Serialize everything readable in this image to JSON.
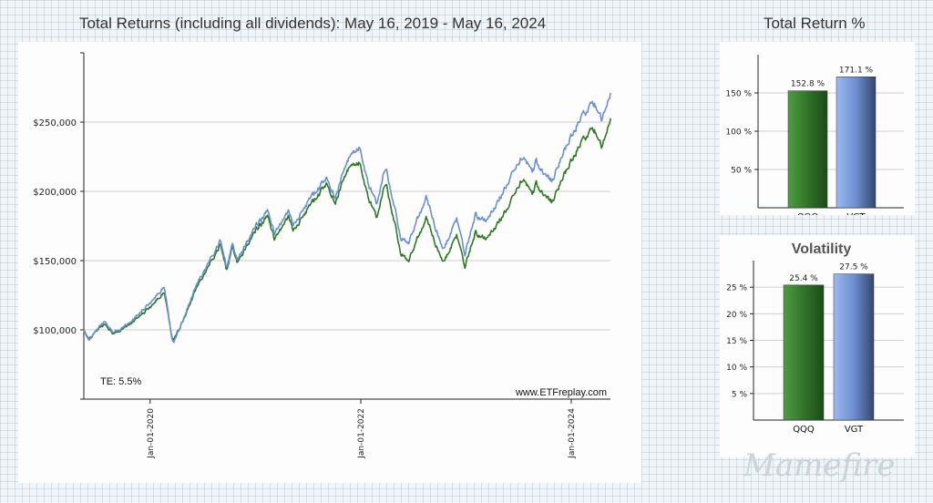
{
  "main_title": "Total Returns (including all dividends): May 16, 2019 - May 16, 2024",
  "side_title": "Total Return %",
  "watermark": "Mamefire",
  "colors": {
    "qqq_line": "#2d7a22",
    "vgt_line": "#6a8fd8",
    "qqq_bar": "#3d8a34",
    "vgt_bar": "#8aa8e6",
    "grid": "#d0d0d0"
  },
  "chart_data": [
    {
      "type": "line",
      "title": "Total Returns (including all dividends): May 16, 2019 - May 16, 2024",
      "y_tick_labels": [
        "$100,000",
        "$150,000",
        "$200,000",
        "$250,000"
      ],
      "x_tick_labels": [
        "Jan-01-2020",
        "Jan-01-2022",
        "Jan-01-2024"
      ],
      "ylim": [
        50000,
        300000
      ],
      "x_range": [
        "2019-05-16",
        "2024-05-16"
      ],
      "grid": true,
      "annotation": "TE:  5.5%",
      "source": "www.ETFreplay.com",
      "series": [
        {
          "name": "QQQ",
          "points": [
            [
              "2019-05-16",
              100000
            ],
            [
              "2019-06-03",
              94000
            ],
            [
              "2019-07-26",
              104000
            ],
            [
              "2019-08-26",
              97000
            ],
            [
              "2019-10-15",
              103000
            ],
            [
              "2019-12-31",
              116000
            ],
            [
              "2020-02-19",
              128000
            ],
            [
              "2020-03-16",
              95000
            ],
            [
              "2020-03-23",
              93000
            ],
            [
              "2020-05-01",
              110000
            ],
            [
              "2020-06-10",
              130000
            ],
            [
              "2020-09-02",
              162000
            ],
            [
              "2020-09-23",
              142000
            ],
            [
              "2020-10-12",
              160000
            ],
            [
              "2020-10-30",
              148000
            ],
            [
              "2020-12-31",
              172000
            ],
            [
              "2021-02-12",
              182000
            ],
            [
              "2021-03-08",
              165000
            ],
            [
              "2021-04-26",
              182000
            ],
            [
              "2021-05-12",
              172000
            ],
            [
              "2021-07-15",
              192000
            ],
            [
              "2021-09-07",
              206000
            ],
            [
              "2021-10-04",
              192000
            ],
            [
              "2021-11-19",
              217000
            ],
            [
              "2021-12-27",
              220000
            ],
            [
              "2022-01-27",
              195000
            ],
            [
              "2022-02-24",
              182000
            ],
            [
              "2022-03-29",
              207000
            ],
            [
              "2022-05-20",
              155000
            ],
            [
              "2022-06-16",
              150000
            ],
            [
              "2022-08-15",
              181000
            ],
            [
              "2022-10-13",
              148000
            ],
            [
              "2022-11-30",
              168000
            ],
            [
              "2022-12-28",
              146000
            ],
            [
              "2023-02-02",
              170000
            ],
            [
              "2023-03-13",
              165000
            ],
            [
              "2023-05-31",
              190000
            ],
            [
              "2023-07-19",
              210000
            ],
            [
              "2023-08-18",
              197000
            ],
            [
              "2023-09-01",
              205000
            ],
            [
              "2023-10-26",
              192000
            ],
            [
              "2023-12-29",
              222000
            ],
            [
              "2024-02-23",
              240000
            ],
            [
              "2024-03-21",
              245000
            ],
            [
              "2024-04-19",
              232000
            ],
            [
              "2024-05-16",
              252800
            ]
          ]
        },
        {
          "name": "VGT",
          "points": [
            [
              "2019-05-16",
              100000
            ],
            [
              "2019-06-03",
              93000
            ],
            [
              "2019-07-26",
              106000
            ],
            [
              "2019-08-26",
              98000
            ],
            [
              "2019-10-15",
              104000
            ],
            [
              "2019-12-31",
              119000
            ],
            [
              "2020-02-19",
              132000
            ],
            [
              "2020-03-16",
              94000
            ],
            [
              "2020-03-23",
              91000
            ],
            [
              "2020-05-01",
              111000
            ],
            [
              "2020-06-10",
              132000
            ],
            [
              "2020-09-02",
              165000
            ],
            [
              "2020-09-23",
              144000
            ],
            [
              "2020-10-12",
              162000
            ],
            [
              "2020-10-30",
              150000
            ],
            [
              "2020-12-31",
              175000
            ],
            [
              "2021-02-12",
              186000
            ],
            [
              "2021-03-08",
              169000
            ],
            [
              "2021-04-26",
              186000
            ],
            [
              "2021-05-12",
              176000
            ],
            [
              "2021-07-15",
              197000
            ],
            [
              "2021-09-07",
              210000
            ],
            [
              "2021-10-04",
              196000
            ],
            [
              "2021-11-19",
              224000
            ],
            [
              "2021-12-27",
              231000
            ],
            [
              "2022-01-27",
              205000
            ],
            [
              "2022-02-24",
              192000
            ],
            [
              "2022-03-29",
              218000
            ],
            [
              "2022-05-20",
              166000
            ],
            [
              "2022-06-16",
              163000
            ],
            [
              "2022-08-15",
              196000
            ],
            [
              "2022-10-13",
              157000
            ],
            [
              "2022-11-30",
              180000
            ],
            [
              "2022-12-28",
              155000
            ],
            [
              "2023-02-02",
              183000
            ],
            [
              "2023-03-13",
              178000
            ],
            [
              "2023-05-31",
              208000
            ],
            [
              "2023-07-19",
              226000
            ],
            [
              "2023-08-18",
              213000
            ],
            [
              "2023-09-01",
              221000
            ],
            [
              "2023-10-26",
              207000
            ],
            [
              "2023-12-29",
              240000
            ],
            [
              "2024-02-23",
              258000
            ],
            [
              "2024-03-21",
              264000
            ],
            [
              "2024-04-19",
              252000
            ],
            [
              "2024-05-16",
              271100
            ]
          ]
        }
      ]
    },
    {
      "type": "bar",
      "title": "Total Return %",
      "categories": [
        "QQQ",
        "VGT"
      ],
      "values": [
        152.8,
        171.1
      ],
      "value_labels": [
        "152.8 %",
        "171.1 %"
      ],
      "y_tick_labels": [
        "50 %",
        "100 %",
        "150 %"
      ],
      "ylim": [
        0,
        200
      ],
      "grid": true
    },
    {
      "type": "bar",
      "title": "Volatility",
      "categories": [
        "QQQ",
        "VGT"
      ],
      "values": [
        25.4,
        27.5
      ],
      "value_labels": [
        "25.4 %",
        "27.5 %"
      ],
      "y_tick_labels": [
        "5 %",
        "10 %",
        "15 %",
        "20 %",
        "25 %"
      ],
      "ylim": [
        0,
        30
      ],
      "grid": true
    }
  ]
}
